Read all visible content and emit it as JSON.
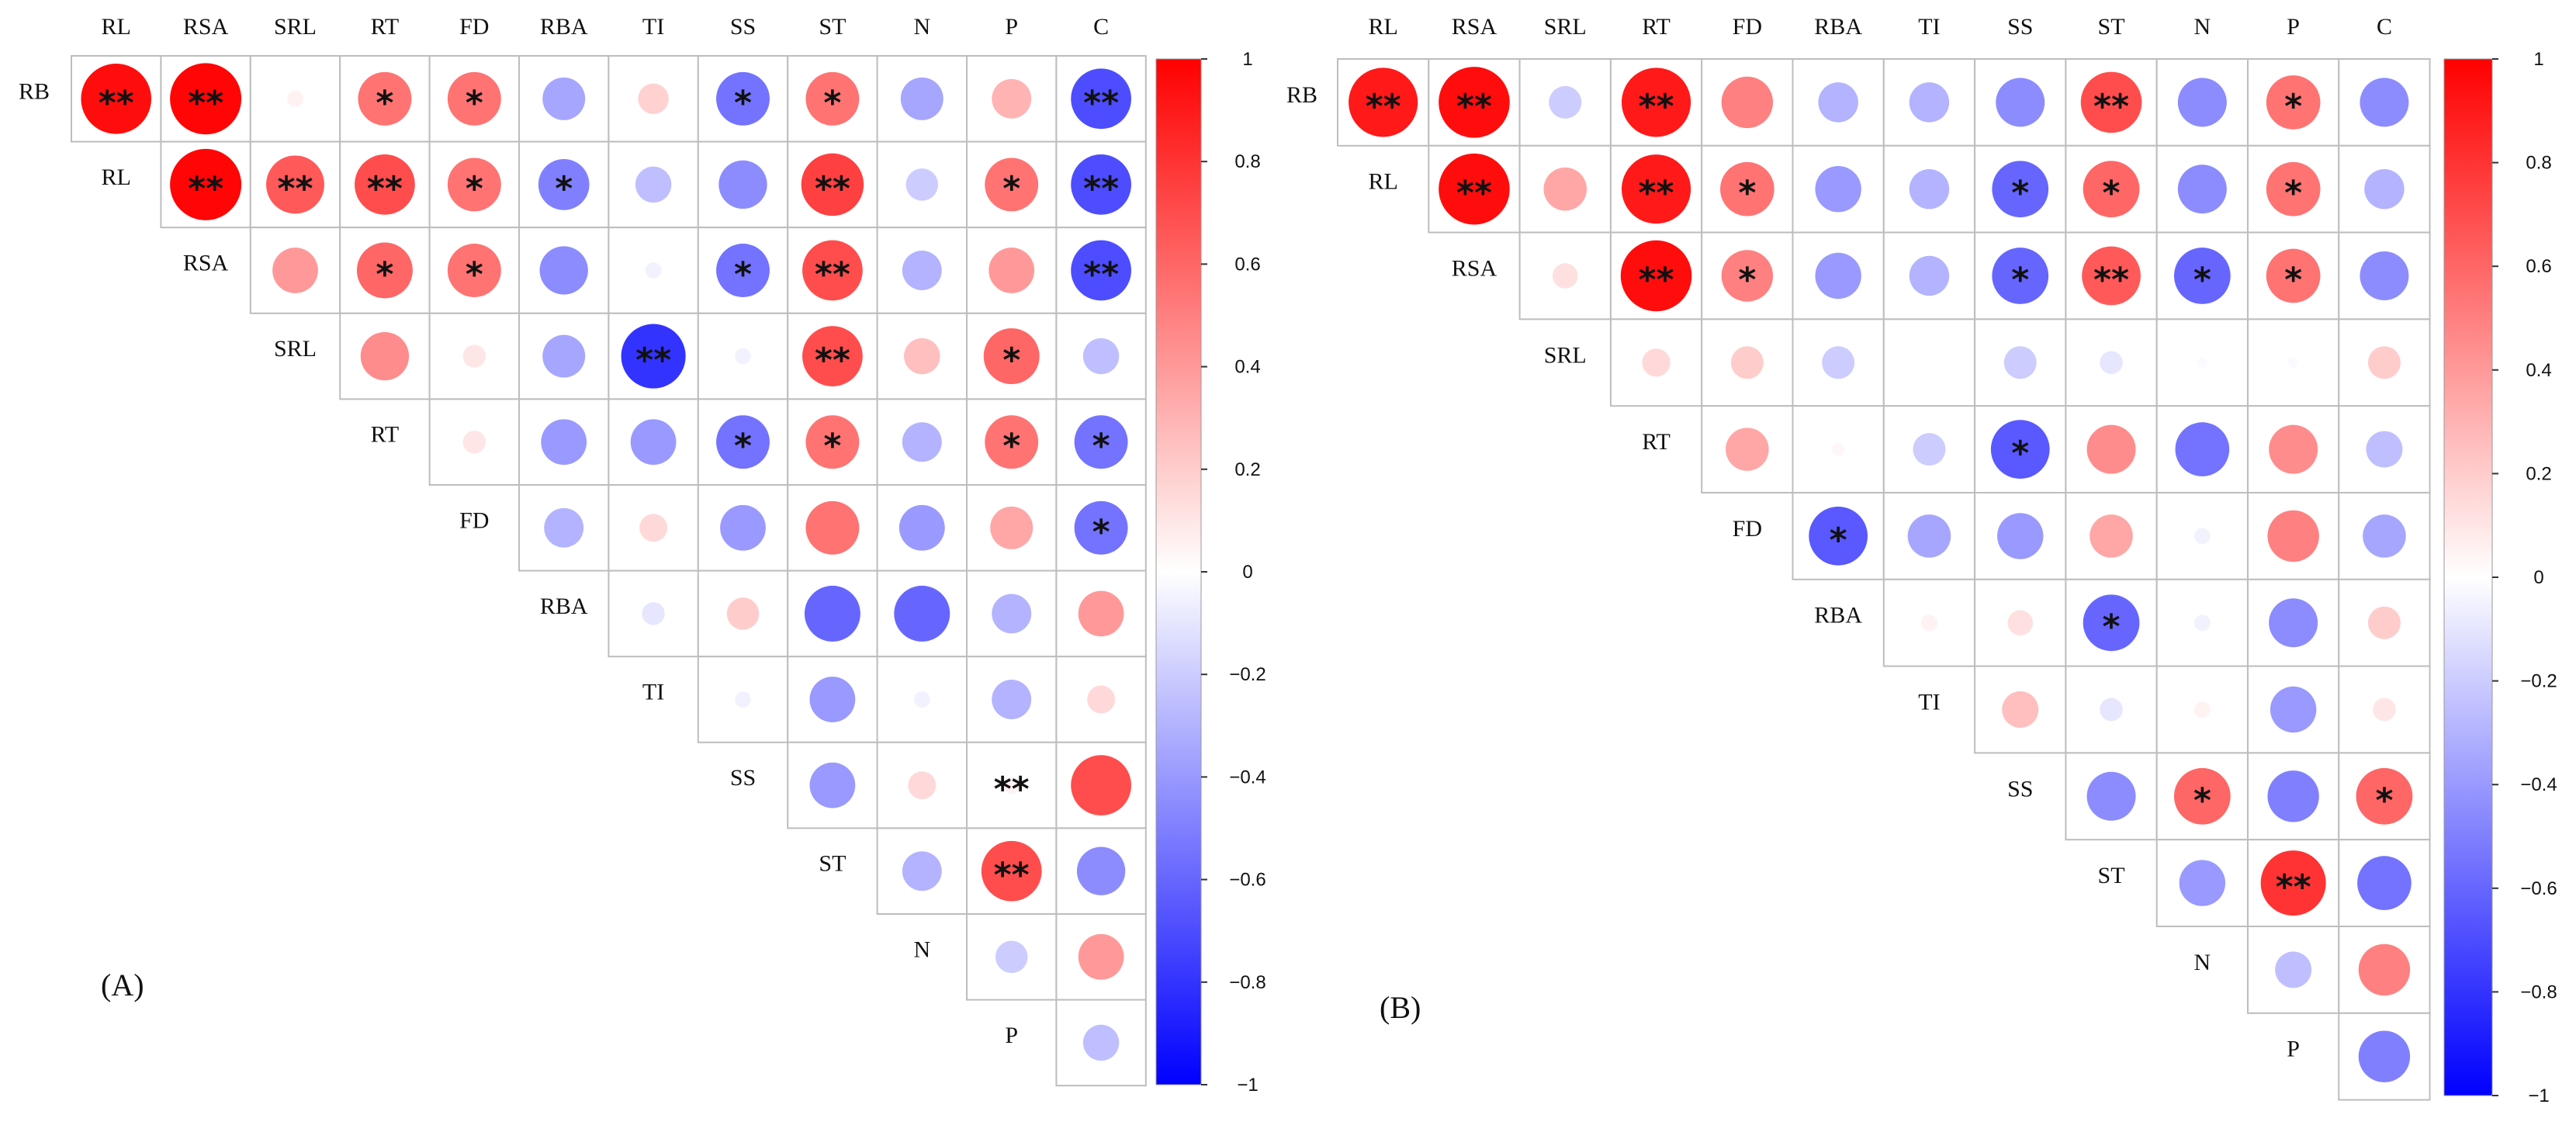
{
  "chart_data": [
    {
      "type": "heatmap",
      "panel": "(A)",
      "variables": [
        "RB",
        "RL",
        "RSA",
        "SRL",
        "RT",
        "FD",
        "RBA",
        "TI",
        "SS",
        "ST",
        "N",
        "P",
        "C"
      ],
      "column_labels": [
        "RL",
        "RSA",
        "SRL",
        "RT",
        "FD",
        "RBA",
        "TI",
        "SS",
        "ST",
        "N",
        "P",
        "C"
      ],
      "row_labels": [
        "RB",
        "RL",
        "RSA",
        "SRL",
        "RT",
        "FD",
        "RBA",
        "TI",
        "SS",
        "ST",
        "N",
        "P"
      ],
      "layout": "upper-triangle circle correlogram",
      "colorbar": {
        "min": -1,
        "max": 1,
        "ticks": [
          "1",
          "0.8",
          "0.6",
          "0.4",
          "0.2",
          "0",
          "−0.2",
          "−0.4",
          "−0.6",
          "−0.8",
          "−1"
        ]
      },
      "matrix": [
        [
          0.95,
          0.98,
          0.05,
          0.55,
          0.55,
          -0.35,
          0.18,
          -0.55,
          0.55,
          -0.35,
          0.3,
          -0.7
        ],
        [
          0.98,
          0.65,
          0.7,
          0.55,
          -0.5,
          -0.25,
          -0.45,
          0.75,
          -0.2,
          0.55,
          -0.7
        ],
        [
          0.4,
          0.6,
          0.55,
          -0.45,
          -0.05,
          -0.55,
          0.7,
          -0.3,
          0.4,
          -0.7
        ],
        [
          0.45,
          0.1,
          -0.35,
          -0.8,
          -0.05,
          0.7,
          0.25,
          0.6,
          -0.25
        ],
        [
          0.1,
          -0.4,
          -0.4,
          -0.55,
          0.55,
          -0.3,
          0.55,
          -0.55
        ],
        [
          -0.3,
          0.15,
          -0.4,
          0.55,
          -0.4,
          0.35,
          -0.55
        ],
        [
          -0.1,
          0.2,
          -0.6,
          -0.6,
          -0.3,
          0.4
        ],
        [
          -0.05,
          -0.4,
          -0.05,
          -0.3,
          0.15
        ],
        [
          -0.4,
          0.15,
          0.05,
          0.7
        ],
        [
          -0.3,
          0.7,
          -0.45
        ],
        [
          -0.2,
          0.4
        ],
        [
          -0.25
        ]
      ],
      "significance": [
        [
          "**",
          "**",
          "",
          "*",
          "*",
          "",
          "",
          "*",
          "*",
          "",
          "",
          "**"
        ],
        [
          "**",
          "**",
          "**",
          "*",
          "*",
          "",
          "",
          "**",
          "",
          "*",
          "**"
        ],
        [
          "",
          "*",
          "*",
          "",
          "",
          "*",
          "**",
          "",
          "",
          "**"
        ],
        [
          "",
          "",
          "",
          "**",
          "",
          "**",
          "",
          "*",
          ""
        ],
        [
          "",
          "",
          "",
          "*",
          "*",
          "",
          "*",
          "*"
        ],
        [
          "",
          "",
          "",
          "",
          "",
          "",
          "*"
        ],
        [
          "",
          "",
          "",
          "",
          "",
          ""
        ],
        [
          "",
          "",
          "",
          "",
          ""
        ],
        [
          "",
          "",
          "**"
        ],
        [
          "",
          "**",
          ""
        ],
        [
          "",
          ""
        ],
        [
          ""
        ]
      ]
    },
    {
      "type": "heatmap",
      "panel": "(B)",
      "variables": [
        "RB",
        "RL",
        "RSA",
        "SRL",
        "RT",
        "FD",
        "RBA",
        "TI",
        "SS",
        "ST",
        "N",
        "P",
        "C"
      ],
      "column_labels": [
        "RL",
        "RSA",
        "SRL",
        "RT",
        "FD",
        "RBA",
        "TI",
        "SS",
        "ST",
        "N",
        "P",
        "C"
      ],
      "row_labels": [
        "RB",
        "RL",
        "RSA",
        "SRL",
        "RT",
        "FD",
        "RBA",
        "TI",
        "SS",
        "ST",
        "N",
        "P"
      ],
      "layout": "upper-triangle circle correlogram",
      "colorbar": {
        "min": -1,
        "max": 1,
        "ticks": [
          "1",
          "0.8",
          "0.6",
          "0.4",
          "0.2",
          "0",
          "−0.2",
          "−0.4",
          "−0.6",
          "−0.8",
          "−1"
        ]
      },
      "matrix": [
        [
          0.9,
          0.95,
          -0.2,
          0.9,
          0.5,
          -0.3,
          -0.3,
          -0.45,
          0.7,
          -0.45,
          0.55,
          -0.45
        ],
        [
          0.95,
          0.35,
          0.9,
          0.55,
          -0.4,
          -0.3,
          -0.6,
          0.6,
          -0.45,
          0.55,
          -0.3
        ],
        [
          0.12,
          0.95,
          0.5,
          -0.4,
          -0.3,
          -0.6,
          0.65,
          -0.6,
          0.55,
          -0.45
        ],
        [
          0.15,
          0.2,
          -0.2,
          0.0,
          -0.2,
          -0.1,
          -0.02,
          -0.02,
          0.2
        ],
        [
          0.35,
          0.03,
          -0.2,
          -0.65,
          0.45,
          -0.55,
          0.45,
          -0.25
        ],
        [
          -0.65,
          -0.35,
          -0.4,
          0.35,
          -0.05,
          0.5,
          -0.35
        ],
        [
          0.05,
          0.12,
          -0.6,
          -0.05,
          -0.45,
          0.2
        ],
        [
          0.25,
          -0.1,
          0.05,
          -0.4,
          0.1
        ],
        [
          -0.45,
          0.6,
          -0.5,
          0.6
        ],
        [
          -0.4,
          0.8,
          -0.55
        ],
        [
          -0.25,
          0.5
        ],
        [
          -0.5
        ]
      ],
      "significance": [
        [
          "**",
          "**",
          "",
          "**",
          "",
          "",
          "",
          "",
          "**",
          "",
          "*",
          ""
        ],
        [
          "**",
          "",
          "**",
          "*",
          "",
          "",
          "*",
          "*",
          "",
          "*",
          ""
        ],
        [
          "",
          "**",
          "*",
          "",
          "",
          "*",
          "**",
          "*",
          "*",
          ""
        ],
        [
          "",
          "",
          "",
          "",
          "",
          "",
          "",
          "",
          ""
        ],
        [
          "",
          "",
          "",
          "*",
          "",
          "",
          "",
          ""
        ],
        [
          "*",
          "",
          "",
          "",
          "",
          "",
          ""
        ],
        [
          "",
          "",
          "*",
          "",
          "",
          ""
        ],
        [
          "",
          "",
          "",
          "",
          ""
        ],
        [
          "",
          "*",
          "",
          "*"
        ],
        [
          "",
          "**",
          ""
        ],
        [
          "",
          ""
        ],
        [
          ""
        ]
      ]
    }
  ]
}
